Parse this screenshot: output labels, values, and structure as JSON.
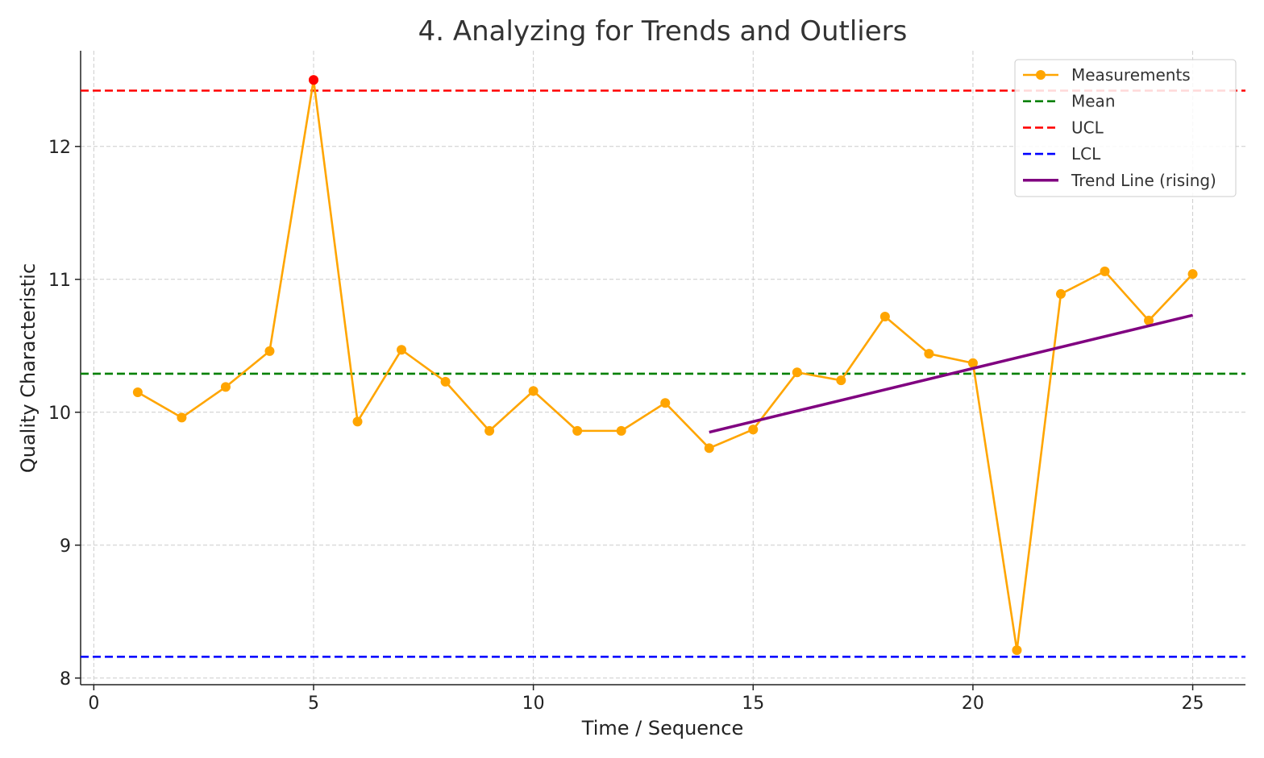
{
  "chart_data": {
    "type": "line",
    "title": "4. Analyzing for Trends and Outliers",
    "xlabel": "Time / Sequence",
    "ylabel": "Quality Characteristic",
    "xlim": [
      -0.3,
      26.2
    ],
    "ylim": [
      7.95,
      12.72
    ],
    "xticks": [
      0,
      5,
      10,
      15,
      20,
      25
    ],
    "yticks": [
      8,
      9,
      10,
      11,
      12
    ],
    "grid": true,
    "legend_position": "top-right",
    "series": [
      {
        "name": "Measurements",
        "color": "#FFA500",
        "marker": "circle",
        "x": [
          1,
          2,
          3,
          4,
          5,
          6,
          7,
          8,
          9,
          10,
          11,
          12,
          13,
          14,
          15,
          16,
          17,
          18,
          19,
          20,
          21,
          22,
          23,
          24,
          25
        ],
        "y": [
          10.15,
          9.96,
          10.19,
          10.46,
          12.5,
          9.93,
          10.47,
          10.23,
          9.86,
          10.16,
          9.86,
          9.86,
          10.07,
          9.73,
          9.87,
          10.3,
          10.24,
          10.72,
          10.44,
          10.37,
          8.21,
          10.89,
          11.06,
          10.69,
          11.04
        ]
      },
      {
        "name": "Mean",
        "color": "#008000",
        "style": "dashed",
        "y": 10.29
      },
      {
        "name": "UCL",
        "color": "#FF0000",
        "style": "dashed",
        "y": 12.42
      },
      {
        "name": "LCL",
        "color": "#0000FF",
        "style": "dashed",
        "y": 8.16
      },
      {
        "name": "Trend Line (rising)",
        "color": "#800080",
        "style": "solid",
        "x": [
          14,
          25
        ],
        "y": [
          9.85,
          10.73
        ]
      }
    ],
    "outliers": [
      {
        "x": 5,
        "y": 12.5,
        "color": "#FF0000"
      }
    ]
  }
}
